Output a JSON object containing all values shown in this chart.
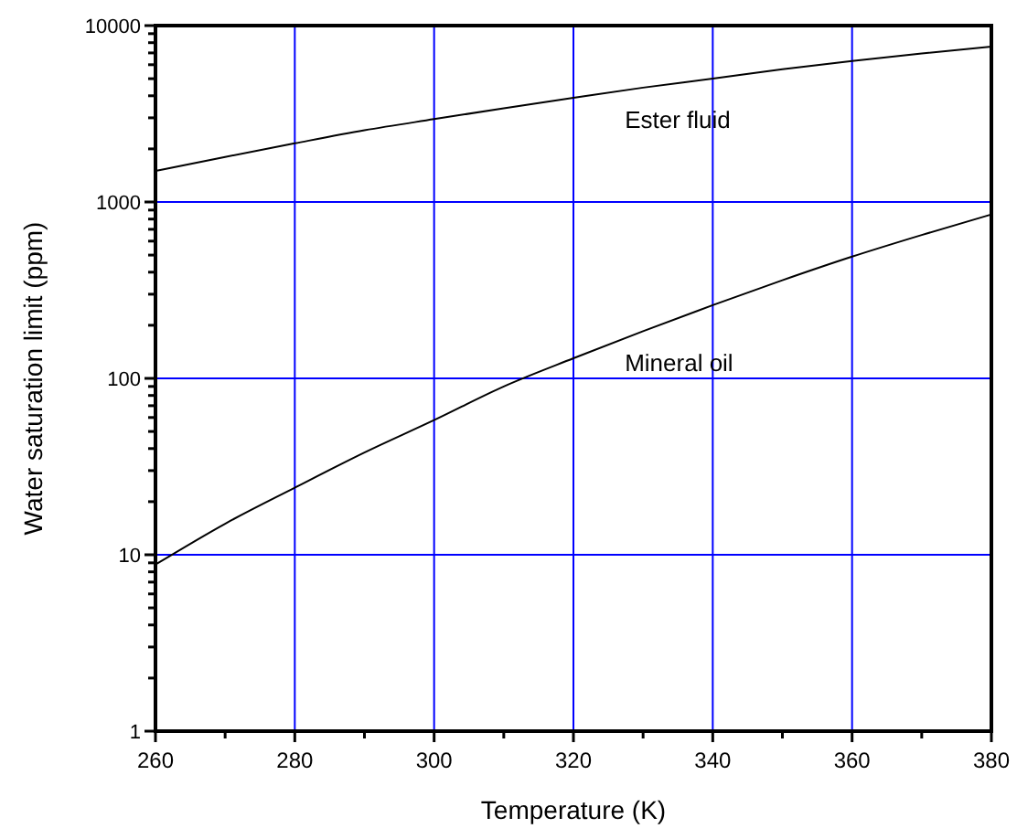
{
  "chart_data": {
    "type": "line",
    "xlabel": "Temperature (K)",
    "ylabel": "Water saturation limit (ppm)",
    "log": "y",
    "grid": true,
    "marker": "none",
    "line_style": "solid",
    "xlim": [
      260,
      380
    ],
    "ylim": [
      1,
      10000
    ],
    "xticks": [
      260,
      {
        "value": 270,
        "label": null
      },
      280,
      {
        "value": 290,
        "label": null
      },
      300,
      {
        "value": 310,
        "label": null
      },
      320,
      {
        "value": 330,
        "label": null
      },
      340,
      {
        "value": 350,
        "label": null
      },
      360,
      {
        "value": 370,
        "label": null
      },
      380
    ],
    "yticks": [
      1,
      {
        "value": 2,
        "label": null
      },
      {
        "value": 3,
        "label": null
      },
      {
        "value": 4,
        "label": null
      },
      {
        "value": 5,
        "label": null
      },
      {
        "value": 6,
        "label": null
      },
      {
        "value": 7,
        "label": null
      },
      {
        "value": 8,
        "label": null
      },
      {
        "value": 9,
        "label": null
      },
      10,
      {
        "value": 20,
        "label": null
      },
      {
        "value": 30,
        "label": null
      },
      {
        "value": 40,
        "label": null
      },
      {
        "value": 50,
        "label": null
      },
      {
        "value": 60,
        "label": null
      },
      {
        "value": 70,
        "label": null
      },
      {
        "value": 80,
        "label": null
      },
      {
        "value": 90,
        "label": null
      },
      100,
      {
        "value": 200,
        "label": null
      },
      {
        "value": 300,
        "label": null
      },
      {
        "value": 400,
        "label": null
      },
      {
        "value": 500,
        "label": null
      },
      {
        "value": 600,
        "label": null
      },
      {
        "value": 700,
        "label": null
      },
      {
        "value": 800,
        "label": null
      },
      {
        "value": 900,
        "label": null
      },
      1000,
      {
        "value": 2000,
        "label": null
      },
      {
        "value": 3000,
        "label": null
      },
      {
        "value": 4000,
        "label": null
      },
      {
        "value": 5000,
        "label": null
      },
      {
        "value": 6000,
        "label": null
      },
      {
        "value": 7000,
        "label": null
      },
      {
        "value": 8000,
        "label": null
      },
      {
        "value": 9000,
        "label": null
      },
      10000
    ],
    "x": [
      260,
      270,
      280,
      290,
      300,
      310,
      320,
      330,
      340,
      350,
      360,
      370,
      380
    ],
    "series": [
      {
        "name": "Ester fluid",
        "color": "#000000",
        "values": [
          1500,
          1800,
          2150,
          2550,
          2950,
          3400,
          3900,
          4450,
          5000,
          5650,
          6300,
          6950,
          7600
        ]
      },
      {
        "name": "Mineral oil",
        "color": "#000000",
        "values": [
          8.8,
          15,
          24,
          38,
          58,
          90,
          130,
          185,
          260,
          360,
          490,
          650,
          850
        ]
      }
    ]
  }
}
